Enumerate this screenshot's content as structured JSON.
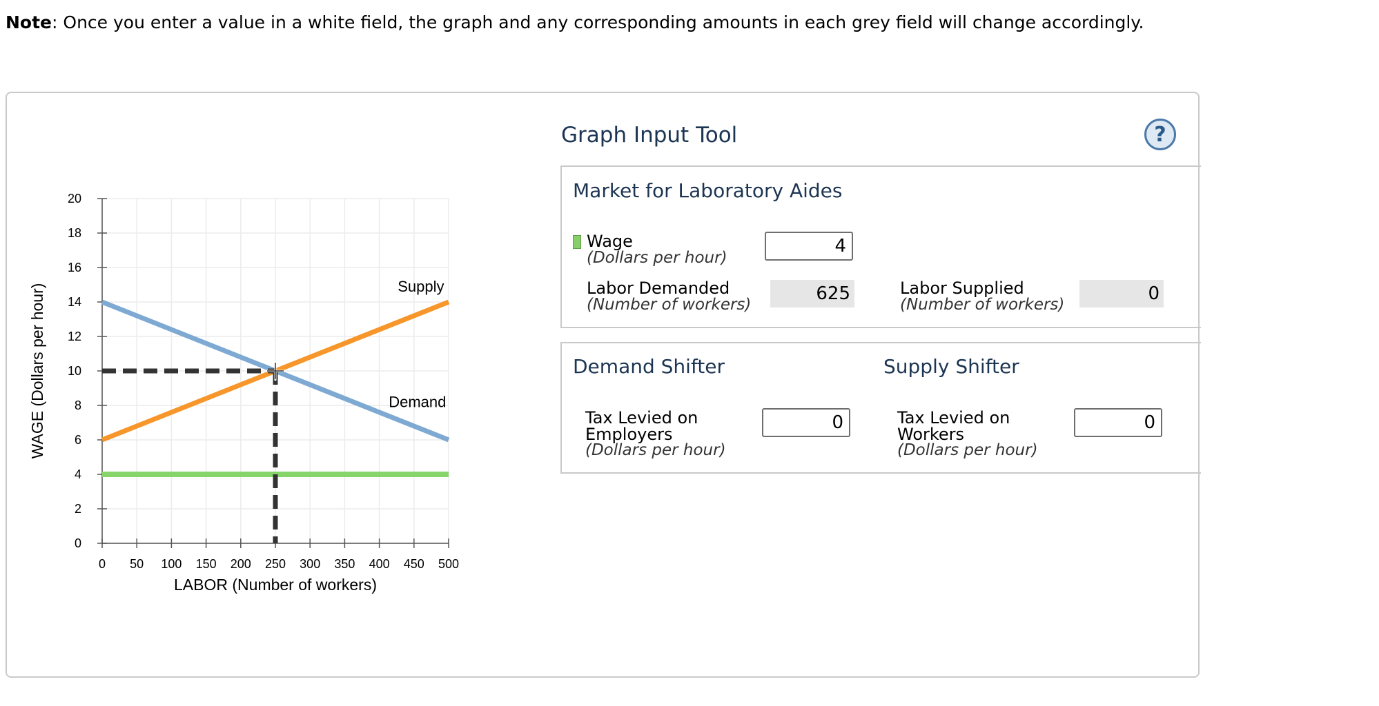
{
  "note": {
    "prefix": "Note",
    "text": ": Once you enter a value in a white field, the graph and any corresponding amounts in each grey field will change accordingly."
  },
  "tool": {
    "title": "Graph Input Tool",
    "help_label": "?",
    "market": {
      "title": "Market for Laboratory Aides",
      "wage_label": "Wage",
      "wage_unit": "(Dollars per hour)",
      "wage_value": "4",
      "labor_demanded_label": "Labor Demanded",
      "labor_demanded_unit": "(Number of workers)",
      "labor_demanded_value": "625",
      "labor_supplied_label": "Labor Supplied",
      "labor_supplied_unit": "(Number of workers)",
      "labor_supplied_value": "0"
    },
    "demand_shifter": {
      "title": "Demand Shifter",
      "label_line1": "Tax Levied on",
      "label_line2": "Employers",
      "unit": "(Dollars per hour)",
      "value": "0"
    },
    "supply_shifter": {
      "title": "Supply Shifter",
      "label_line1": "Tax Levied on",
      "label_line2": "Workers",
      "unit": "(Dollars per hour)",
      "value": "0"
    }
  },
  "colors": {
    "demand": "#7ea9d3",
    "supply": "#f7962a",
    "wage_line": "#86d46a",
    "dashed": "#333333"
  },
  "chart_data": {
    "type": "line",
    "xlabel": "LABOR (Number of workers)",
    "ylabel": "WAGE (Dollars per hour)",
    "xlim": [
      0,
      500
    ],
    "ylim": [
      0,
      20
    ],
    "x_ticks": [
      "0",
      "50",
      "100",
      "150",
      "200",
      "250",
      "300",
      "350",
      "400",
      "450",
      "500"
    ],
    "y_ticks": [
      "0",
      "2",
      "4",
      "6",
      "8",
      "10",
      "12",
      "14",
      "16",
      "18",
      "20"
    ],
    "grid": true,
    "series": [
      {
        "name": "Demand",
        "points": [
          [
            0,
            14
          ],
          [
            500,
            6
          ]
        ]
      },
      {
        "name": "Supply",
        "points": [
          [
            0,
            6
          ],
          [
            500,
            14
          ]
        ]
      }
    ],
    "wage_level": 4,
    "equilibrium": {
      "x": 250,
      "y": 10
    }
  }
}
